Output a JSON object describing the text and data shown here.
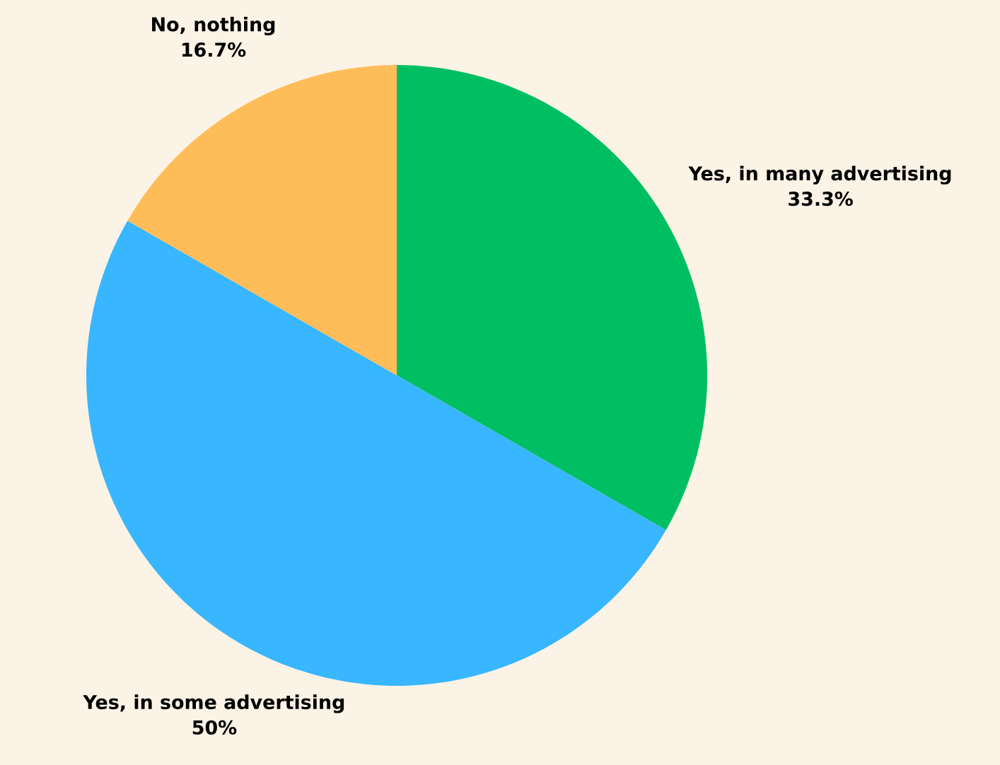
{
  "chart_data": {
    "type": "pie",
    "categories": [
      "Yes, in many advertising",
      "Yes, in some advertising",
      "No, nothing"
    ],
    "values": [
      33.3,
      50,
      16.7
    ],
    "colors": [
      "#00bf63",
      "#38b6ff",
      "#ffbd59"
    ],
    "value_labels": [
      "33.3%",
      "50%",
      "16.7%"
    ]
  }
}
